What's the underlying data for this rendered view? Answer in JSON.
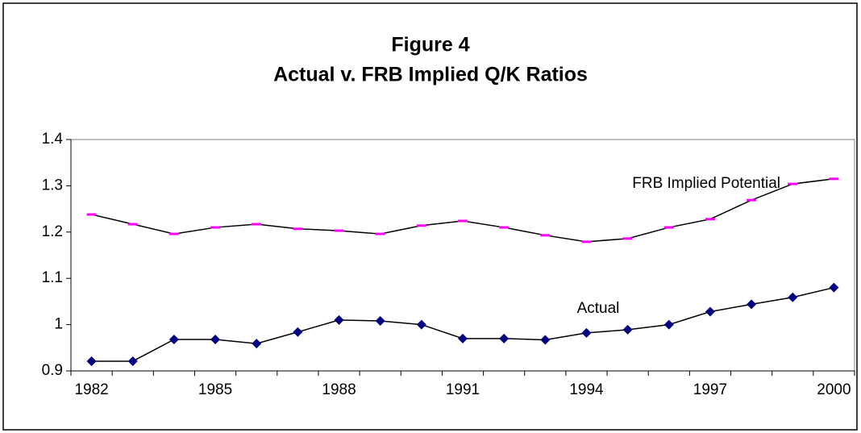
{
  "chart_data": {
    "type": "line",
    "title": "Figure 4",
    "subtitle": "Actual v. FRB Implied Q/K Ratios",
    "categories": [
      "1982",
      null,
      null,
      "1985",
      null,
      null,
      "1988",
      null,
      null,
      "1991",
      null,
      null,
      "1994",
      null,
      null,
      "1997",
      null,
      null,
      "2000"
    ],
    "series": [
      {
        "name": "FRB Implied Potential",
        "color": "#ff00ff",
        "marker": "dash",
        "values": [
          1.238,
          1.217,
          1.196,
          1.21,
          1.217,
          1.207,
          1.203,
          1.196,
          1.214,
          1.224,
          1.21,
          1.193,
          1.179,
          1.186,
          1.21,
          1.228,
          1.269,
          1.304,
          1.315
        ]
      },
      {
        "name": "Actual",
        "color": "#000080",
        "marker": "diamond",
        "values": [
          0.921,
          0.921,
          0.968,
          0.968,
          0.959,
          0.984,
          1.01,
          1.008,
          1.0,
          0.97,
          0.97,
          0.967,
          0.982,
          0.989,
          1.0,
          1.028,
          1.044,
          1.059,
          1.08
        ]
      }
    ],
    "ylim": [
      0.9,
      1.4
    ],
    "yticks": [
      0.9,
      1,
      1.1,
      1.2,
      1.3,
      1.4
    ],
    "grid": false
  }
}
